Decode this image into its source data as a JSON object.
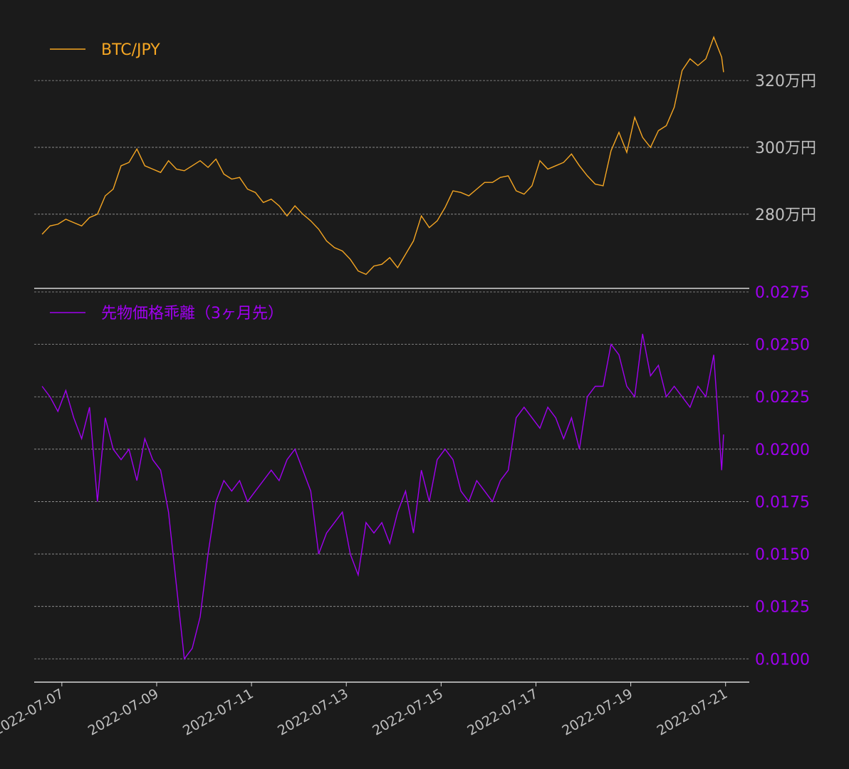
{
  "colors": {
    "background": "#1b1b1b",
    "btc": "#f5a623",
    "spread": "#a000f0",
    "axis_text": "#bfbfbf",
    "grid": "#9a9a9a"
  },
  "chart_data": [
    {
      "type": "line",
      "legend": "top-left",
      "grid": true,
      "series": [
        {
          "name": "BTC/JPY",
          "x": [
            "2022-07-06T14:00",
            "2022-07-06T18:00",
            "2022-07-06T22:00",
            "2022-07-07T02:00",
            "2022-07-07T06:00",
            "2022-07-07T10:00",
            "2022-07-07T14:00",
            "2022-07-07T18:00",
            "2022-07-07T22:00",
            "2022-07-08T02:00",
            "2022-07-08T06:00",
            "2022-07-08T10:00",
            "2022-07-08T14:00",
            "2022-07-08T18:00",
            "2022-07-08T22:00",
            "2022-07-09T02:00",
            "2022-07-09T06:00",
            "2022-07-09T10:00",
            "2022-07-09T14:00",
            "2022-07-09T18:00",
            "2022-07-09T22:00",
            "2022-07-10T02:00",
            "2022-07-10T06:00",
            "2022-07-10T10:00",
            "2022-07-10T14:00",
            "2022-07-10T18:00",
            "2022-07-10T22:00",
            "2022-07-11T02:00",
            "2022-07-11T06:00",
            "2022-07-11T10:00",
            "2022-07-11T14:00",
            "2022-07-11T18:00",
            "2022-07-11T22:00",
            "2022-07-12T02:00",
            "2022-07-12T06:00",
            "2022-07-12T10:00",
            "2022-07-12T14:00",
            "2022-07-12T18:00",
            "2022-07-12T22:00",
            "2022-07-13T02:00",
            "2022-07-13T06:00",
            "2022-07-13T10:00",
            "2022-07-13T14:00",
            "2022-07-13T18:00",
            "2022-07-13T22:00",
            "2022-07-14T02:00",
            "2022-07-14T06:00",
            "2022-07-14T10:00",
            "2022-07-14T14:00",
            "2022-07-14T18:00",
            "2022-07-14T22:00",
            "2022-07-15T02:00",
            "2022-07-15T06:00",
            "2022-07-15T10:00",
            "2022-07-15T14:00",
            "2022-07-15T18:00",
            "2022-07-15T22:00",
            "2022-07-16T02:00",
            "2022-07-16T06:00",
            "2022-07-16T10:00",
            "2022-07-16T14:00",
            "2022-07-16T18:00",
            "2022-07-16T22:00",
            "2022-07-17T02:00",
            "2022-07-17T06:00",
            "2022-07-17T10:00",
            "2022-07-17T14:00",
            "2022-07-17T18:00",
            "2022-07-17T22:00",
            "2022-07-18T02:00",
            "2022-07-18T06:00",
            "2022-07-18T10:00",
            "2022-07-18T14:00",
            "2022-07-18T18:00",
            "2022-07-18T22:00",
            "2022-07-19T02:00",
            "2022-07-19T06:00",
            "2022-07-19T10:00",
            "2022-07-19T14:00",
            "2022-07-19T18:00",
            "2022-07-19T22:00",
            "2022-07-20T02:00",
            "2022-07-20T06:00",
            "2022-07-20T10:00",
            "2022-07-20T14:00",
            "2022-07-20T18:00"
          ],
          "values": [
            2740000,
            2765000,
            2770000,
            2785000,
            2775000,
            2765000,
            2790000,
            2800000,
            2855000,
            2875000,
            2945000,
            2955000,
            2995000,
            2945000,
            2935000,
            2925000,
            2960000,
            2935000,
            2930000,
            2945000,
            2960000,
            2940000,
            2965000,
            2920000,
            2905000,
            2910000,
            2875000,
            2865000,
            2835000,
            2845000,
            2825000,
            2795000,
            2825000,
            2800000,
            2780000,
            2755000,
            2720000,
            2700000,
            2690000,
            2665000,
            2630000,
            2620000,
            2645000,
            2650000,
            2670000,
            2640000,
            2680000,
            2720000,
            2795000,
            2760000,
            2780000,
            2820000,
            2870000,
            2865000,
            2855000,
            2875000,
            2895000,
            2895000,
            2910000,
            2915000,
            2870000,
            2860000,
            2885000,
            2960000,
            2935000,
            2945000,
            2955000,
            2980000,
            2945000,
            2915000,
            2890000,
            2885000,
            2990000,
            3045000,
            2985000,
            3090000,
            3030000,
            3000000,
            3050000,
            3065000,
            3120000,
            3230000,
            3265000,
            3245000,
            3265000,
            3330000
          ],
          "x_extra": [
            "2022-07-20T22:00",
            "2022-07-20T23:00"
          ],
          "values_extra": [
            3270000,
            3225000
          ]
        }
      ],
      "y_tick_labels": [
        "280万円",
        "300万円",
        "320万円"
      ],
      "y_ticks": [
        2800000,
        3000000,
        3200000
      ],
      "ylim": [
        2610000,
        3360000
      ]
    },
    {
      "type": "line",
      "legend": "top-left",
      "grid": true,
      "series": [
        {
          "name": "先物価格乖離（3ヶ月先）",
          "x": [
            "2022-07-06T14:00",
            "2022-07-06T18:00",
            "2022-07-06T22:00",
            "2022-07-07T02:00",
            "2022-07-07T06:00",
            "2022-07-07T10:00",
            "2022-07-07T14:00",
            "2022-07-07T18:00",
            "2022-07-07T22:00",
            "2022-07-08T02:00",
            "2022-07-08T06:00",
            "2022-07-08T10:00",
            "2022-07-08T14:00",
            "2022-07-08T18:00",
            "2022-07-08T22:00",
            "2022-07-09T02:00",
            "2022-07-09T06:00",
            "2022-07-09T10:00",
            "2022-07-09T14:00",
            "2022-07-09T18:00",
            "2022-07-09T22:00",
            "2022-07-10T02:00",
            "2022-07-10T06:00",
            "2022-07-10T10:00",
            "2022-07-10T14:00",
            "2022-07-10T18:00",
            "2022-07-10T22:00",
            "2022-07-11T02:00",
            "2022-07-11T06:00",
            "2022-07-11T10:00",
            "2022-07-11T14:00",
            "2022-07-11T18:00",
            "2022-07-11T22:00",
            "2022-07-12T02:00",
            "2022-07-12T06:00",
            "2022-07-12T10:00",
            "2022-07-12T14:00",
            "2022-07-12T18:00",
            "2022-07-12T22:00",
            "2022-07-13T02:00",
            "2022-07-13T06:00",
            "2022-07-13T10:00",
            "2022-07-13T14:00",
            "2022-07-13T18:00",
            "2022-07-13T22:00",
            "2022-07-14T02:00",
            "2022-07-14T06:00",
            "2022-07-14T10:00",
            "2022-07-14T14:00",
            "2022-07-14T18:00",
            "2022-07-14T22:00",
            "2022-07-15T02:00",
            "2022-07-15T06:00",
            "2022-07-15T10:00",
            "2022-07-15T14:00",
            "2022-07-15T18:00",
            "2022-07-15T22:00",
            "2022-07-16T02:00",
            "2022-07-16T06:00",
            "2022-07-16T10:00",
            "2022-07-16T14:00",
            "2022-07-16T18:00",
            "2022-07-16T22:00",
            "2022-07-17T02:00",
            "2022-07-17T06:00",
            "2022-07-17T10:00",
            "2022-07-17T14:00",
            "2022-07-17T18:00",
            "2022-07-17T22:00",
            "2022-07-18T02:00",
            "2022-07-18T06:00",
            "2022-07-18T10:00",
            "2022-07-18T14:00",
            "2022-07-18T18:00",
            "2022-07-18T22:00",
            "2022-07-19T02:00",
            "2022-07-19T06:00",
            "2022-07-19T10:00",
            "2022-07-19T14:00",
            "2022-07-19T18:00",
            "2022-07-19T22:00",
            "2022-07-20T02:00",
            "2022-07-20T06:00",
            "2022-07-20T10:00",
            "2022-07-20T14:00",
            "2022-07-20T18:00"
          ],
          "values": [
            0.023,
            0.0225,
            0.0218,
            0.0228,
            0.0215,
            0.0205,
            0.022,
            0.0175,
            0.0215,
            0.02,
            0.0195,
            0.02,
            0.0185,
            0.0205,
            0.0195,
            0.019,
            0.017,
            0.0135,
            0.01,
            0.0105,
            0.012,
            0.015,
            0.0175,
            0.0185,
            0.018,
            0.0185,
            0.0175,
            0.018,
            0.0185,
            0.019,
            0.0185,
            0.0195,
            0.02,
            0.019,
            0.018,
            0.015,
            0.016,
            0.0165,
            0.017,
            0.015,
            0.014,
            0.0165,
            0.016,
            0.0165,
            0.0155,
            0.017,
            0.018,
            0.016,
            0.019,
            0.0175,
            0.0195,
            0.02,
            0.0195,
            0.018,
            0.0175,
            0.0185,
            0.018,
            0.0175,
            0.0185,
            0.019,
            0.0215,
            0.022,
            0.0215,
            0.021,
            0.022,
            0.0215,
            0.0205,
            0.0215,
            0.02,
            0.0225,
            0.023,
            0.023,
            0.025,
            0.0245,
            0.023,
            0.0225,
            0.0255,
            0.0235,
            0.024,
            0.0225,
            0.023,
            0.0225,
            0.022,
            0.023,
            0.0225,
            0.0245
          ],
          "x_extra": [
            "2022-07-20T22:00",
            "2022-07-20T23:00"
          ],
          "values_extra": [
            0.019,
            0.0207
          ]
        }
      ],
      "y_tick_labels": [
        "0.0100",
        "0.0125",
        "0.0150",
        "0.0175",
        "0.0200",
        "0.0225",
        "0.0250",
        "0.0275"
      ],
      "y_ticks": [
        0.01,
        0.0125,
        0.015,
        0.0175,
        0.02,
        0.0225,
        0.025,
        0.0275
      ],
      "ylim": [
        0.0095,
        0.0275
      ]
    }
  ],
  "x_axis": {
    "ticks": [
      "2022-07-07",
      "2022-07-09",
      "2022-07-11",
      "2022-07-13",
      "2022-07-15",
      "2022-07-17",
      "2022-07-19",
      "2022-07-21"
    ],
    "xlim": [
      "2022-07-06T10:00",
      "2022-07-21T12:00"
    ]
  }
}
